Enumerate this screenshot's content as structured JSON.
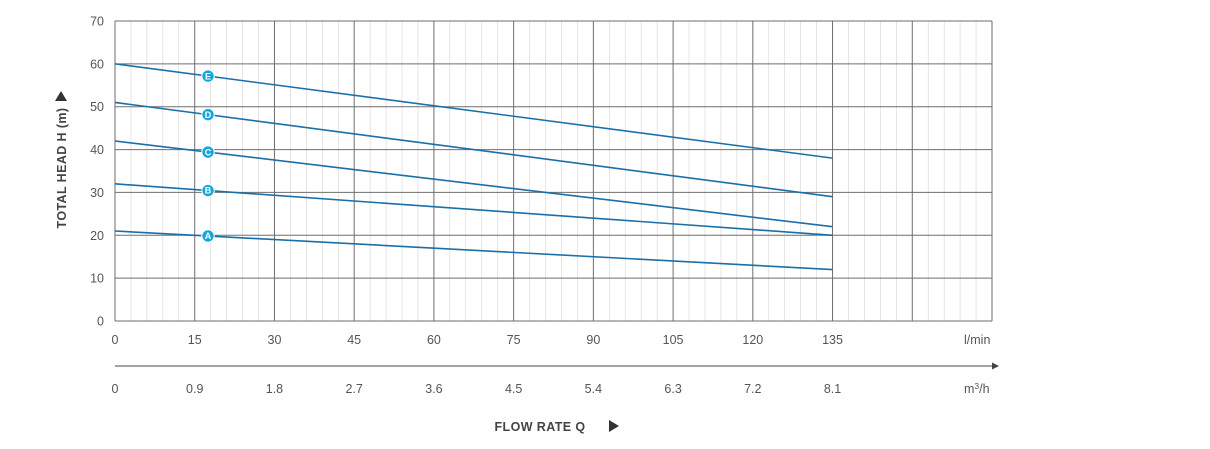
{
  "chart_data": {
    "type": "line",
    "ylabel": "TOTAL HEAD H (m)",
    "xlabel": "FLOW RATE Q",
    "x_unit": "l/min",
    "x2_unit": "m³/h",
    "xlim": [
      0,
      165
    ],
    "ylim": [
      0,
      70
    ],
    "x_ticks": [
      "0",
      "15",
      "30",
      "45",
      "60",
      "75",
      "90",
      "105",
      "120",
      "135"
    ],
    "x2_ticks": [
      "0",
      "0.9",
      "1.8",
      "2.7",
      "3.6",
      "4.5",
      "5.4",
      "6.3",
      "7.2",
      "8.1"
    ],
    "y_ticks": [
      "0",
      "10",
      "20",
      "30",
      "40",
      "50",
      "60",
      "70"
    ],
    "grid": true,
    "line_color": "#1a6fa8",
    "marker_color": "#16a6de",
    "series": [
      {
        "name": "A",
        "x": [
          0,
          135
        ],
        "values": [
          21,
          12
        ]
      },
      {
        "name": "B",
        "x": [
          0,
          135
        ],
        "values": [
          32,
          20
        ]
      },
      {
        "name": "C",
        "x": [
          0,
          135
        ],
        "values": [
          42,
          22
        ]
      },
      {
        "name": "D",
        "x": [
          0,
          135
        ],
        "values": [
          51,
          29
        ]
      },
      {
        "name": "E",
        "x": [
          0,
          135
        ],
        "values": [
          60,
          38
        ]
      }
    ],
    "marker_x": 17.5
  }
}
